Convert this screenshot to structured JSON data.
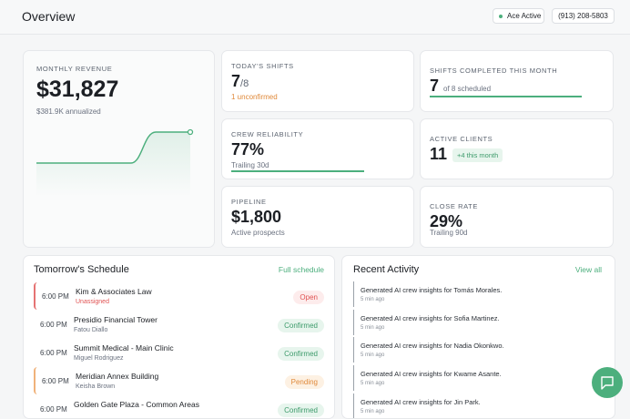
{
  "header": {
    "title": "Overview",
    "status": "Ace Active",
    "phone": "(913) 208-5803"
  },
  "revenue": {
    "label": "MONTHLY REVENUE",
    "value": "$31,827",
    "sub": "$381.9K annualized"
  },
  "stats": [
    {
      "label": "TODAY'S SHIFTS",
      "value": 7,
      "total_label": "/8",
      "note": "1 unconfirmed"
    },
    {
      "label": "SHIFTS COMPLETED THIS MONTH",
      "value": 7,
      "total": 8,
      "total_label": "of 8 scheduled"
    },
    {
      "label": "CREW RELIABILITY",
      "value": 77,
      "value_label": "77%",
      "sub": "Trailing 30d"
    },
    {
      "label": "ACTIVE CLIENTS",
      "value": 11,
      "badge": "+4 this month"
    },
    {
      "label": "PIPELINE",
      "value": "$1,800",
      "sub": "Active prospects"
    },
    {
      "label": "CLOSE RATE",
      "value": 29,
      "value_label": "29%",
      "sub": "Trailing 90d"
    }
  ],
  "schedule": {
    "title": "Tomorrow's Schedule",
    "link": "Full schedule",
    "rows": [
      {
        "time": "6:00 PM",
        "name": "Kim & Associates Law",
        "sub": "Unassigned",
        "status": "Open"
      },
      {
        "time": "6:00 PM",
        "name": "Presidio Financial Tower",
        "sub": "Fatou Diallo",
        "status": "Confirmed"
      },
      {
        "time": "6:00 PM",
        "name": "Summit Medical - Main Clinic",
        "sub": "Miguel Rodriguez",
        "status": "Confirmed"
      },
      {
        "time": "6:00 PM",
        "name": "Meridian Annex Building",
        "sub": "Keisha Brown",
        "status": "Pending"
      },
      {
        "time": "6:00 PM",
        "name": "Golden Gate Plaza - Common Areas",
        "sub": "",
        "status": "Confirmed"
      }
    ]
  },
  "activity": {
    "title": "Recent Activity",
    "link": "View all",
    "items": [
      {
        "text": "Generated AI crew insights for Tomás Morales.",
        "time": "5 min ago"
      },
      {
        "text": "Generated AI crew insights for Sofia Martinez.",
        "time": "5 min ago"
      },
      {
        "text": "Generated AI crew insights for Nadia Okonkwo.",
        "time": "5 min ago"
      },
      {
        "text": "Generated AI crew insights for Kwame Asante.",
        "time": "5 min ago"
      },
      {
        "text": "Generated AI crew insights for Jin Park.",
        "time": "5 min ago"
      }
    ]
  }
}
